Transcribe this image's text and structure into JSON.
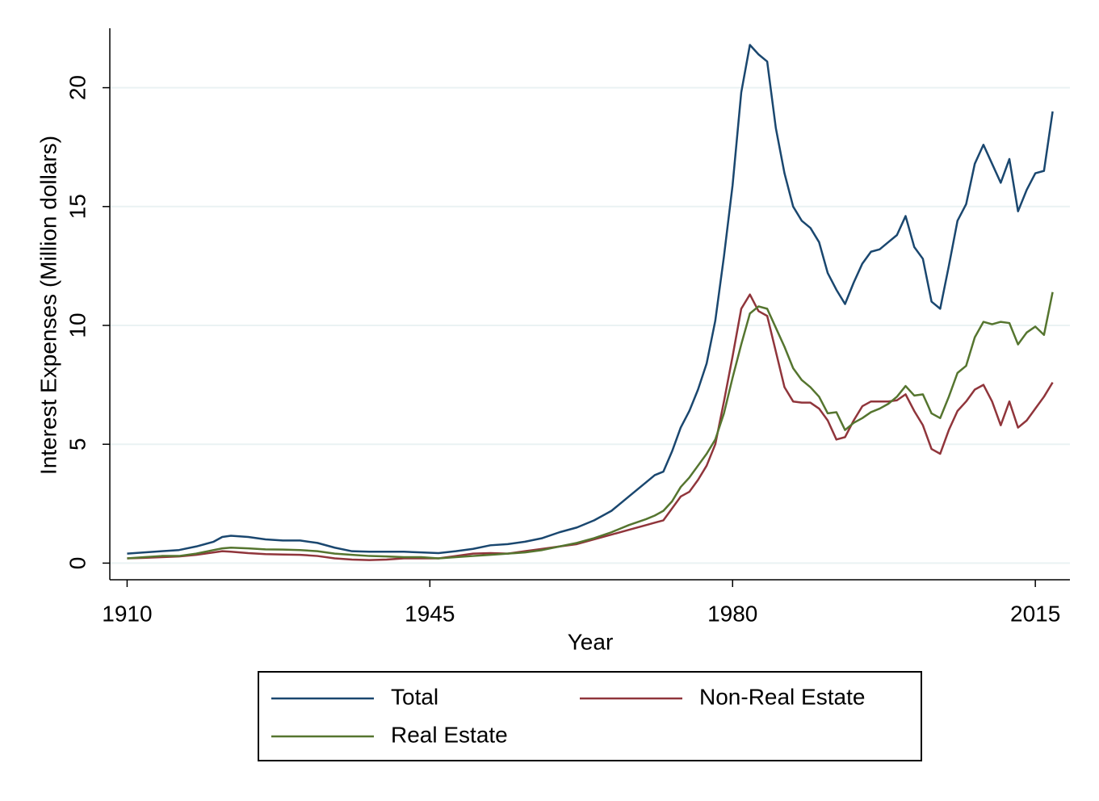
{
  "chart_data": {
    "type": "line",
    "xlabel": "Year",
    "ylabel": "Interest Expenses (Million dollars)",
    "x": [
      1910,
      1912,
      1914,
      1916,
      1918,
      1920,
      1921,
      1922,
      1924,
      1926,
      1928,
      1930,
      1932,
      1934,
      1936,
      1938,
      1940,
      1942,
      1944,
      1946,
      1948,
      1950,
      1952,
      1954,
      1956,
      1958,
      1960,
      1962,
      1964,
      1966,
      1968,
      1970,
      1971,
      1972,
      1973,
      1974,
      1975,
      1976,
      1977,
      1978,
      1979,
      1980,
      1981,
      1982,
      1983,
      1984,
      1985,
      1986,
      1987,
      1988,
      1989,
      1990,
      1991,
      1992,
      1993,
      1994,
      1995,
      1996,
      1997,
      1998,
      1999,
      2000,
      2001,
      2002,
      2003,
      2004,
      2005,
      2006,
      2007,
      2008,
      2009,
      2010,
      2011,
      2012,
      2013,
      2014,
      2015,
      2016,
      2017
    ],
    "series": [
      {
        "name": "Total",
        "color": "#1a476f",
        "values": [
          0.4,
          0.45,
          0.5,
          0.55,
          0.7,
          0.9,
          1.1,
          1.15,
          1.1,
          1.0,
          0.95,
          0.95,
          0.85,
          0.65,
          0.5,
          0.48,
          0.48,
          0.48,
          0.45,
          0.42,
          0.5,
          0.6,
          0.75,
          0.8,
          0.9,
          1.05,
          1.3,
          1.5,
          1.8,
          2.2,
          2.8,
          3.4,
          3.7,
          3.85,
          4.7,
          5.7,
          6.4,
          7.3,
          8.4,
          10.2,
          12.9,
          15.9,
          19.8,
          21.8,
          21.4,
          21.1,
          18.3,
          16.4,
          15.0,
          14.4,
          14.1,
          13.5,
          12.2,
          11.5,
          10.9,
          11.8,
          12.6,
          13.1,
          13.2,
          13.5,
          13.8,
          14.6,
          13.3,
          12.8,
          11.0,
          10.7,
          12.5,
          14.4,
          15.1,
          16.8,
          17.6,
          16.8,
          16.0,
          17.0,
          14.8,
          15.7,
          16.4,
          16.5,
          19.0
        ]
      },
      {
        "name": "Non-Real Estate",
        "color": "#90353b",
        "values": [
          0.2,
          0.22,
          0.25,
          0.28,
          0.35,
          0.45,
          0.5,
          0.48,
          0.42,
          0.38,
          0.36,
          0.35,
          0.3,
          0.2,
          0.15,
          0.13,
          0.15,
          0.2,
          0.2,
          0.2,
          0.3,
          0.4,
          0.42,
          0.4,
          0.5,
          0.6,
          0.7,
          0.8,
          1.0,
          1.2,
          1.4,
          1.6,
          1.7,
          1.8,
          2.3,
          2.8,
          3.0,
          3.5,
          4.1,
          5.0,
          6.8,
          8.7,
          10.7,
          11.3,
          10.6,
          10.4,
          8.9,
          7.4,
          6.8,
          6.75,
          6.75,
          6.5,
          6.0,
          5.2,
          5.3,
          6.0,
          6.6,
          6.8,
          6.8,
          6.8,
          6.85,
          7.1,
          6.4,
          5.8,
          4.8,
          4.6,
          5.6,
          6.4,
          6.8,
          7.3,
          7.5,
          6.8,
          5.8,
          6.8,
          5.7,
          6.0,
          6.5,
          7.0,
          7.6
        ]
      },
      {
        "name": "Real Estate",
        "color": "#55752f",
        "values": [
          0.2,
          0.25,
          0.3,
          0.3,
          0.4,
          0.55,
          0.62,
          0.65,
          0.62,
          0.58,
          0.57,
          0.55,
          0.5,
          0.4,
          0.35,
          0.3,
          0.28,
          0.25,
          0.25,
          0.2,
          0.25,
          0.3,
          0.35,
          0.4,
          0.45,
          0.55,
          0.7,
          0.85,
          1.05,
          1.3,
          1.6,
          1.85,
          2.0,
          2.2,
          2.6,
          3.2,
          3.6,
          4.1,
          4.6,
          5.2,
          6.3,
          7.8,
          9.2,
          10.5,
          10.8,
          10.7,
          9.9,
          9.1,
          8.2,
          7.7,
          7.4,
          7.0,
          6.3,
          6.35,
          5.6,
          5.9,
          6.1,
          6.35,
          6.5,
          6.7,
          7.0,
          7.45,
          7.05,
          7.1,
          6.3,
          6.1,
          7.0,
          8.0,
          8.3,
          9.5,
          10.15,
          10.05,
          10.15,
          10.1,
          9.2,
          9.7,
          9.95,
          9.6,
          11.4
        ]
      }
    ],
    "xlim": [
      1908,
      2019
    ],
    "xticks": [
      1910,
      1945,
      1980,
      2015
    ],
    "ylim": [
      -0.7,
      22.5
    ],
    "yticks": [
      0,
      5,
      10,
      15,
      20
    ],
    "grid": true,
    "legend": "bottom"
  }
}
